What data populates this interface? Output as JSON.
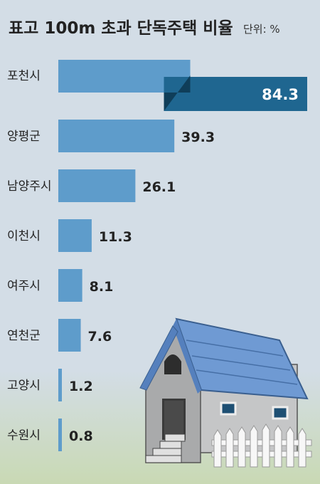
{
  "chart_data": {
    "type": "bar",
    "orientation": "horizontal",
    "title": "표고 100m 초과 단독주택 비율",
    "unit_label": "단위: %",
    "categories": [
      "포천시",
      "양평군",
      "남양주시",
      "이천시",
      "여주시",
      "연천군",
      "고양시",
      "수원시"
    ],
    "values": [
      84.3,
      39.3,
      26.1,
      11.3,
      8.1,
      7.6,
      1.2,
      0.8
    ],
    "value_labels": [
      "84.3",
      "39.3",
      "26.1",
      "11.3",
      "8.1",
      "7.6",
      "1.2",
      "0.8"
    ],
    "xlim": [
      0,
      84.3
    ],
    "grid": false,
    "colors": {
      "bar": "#5e9ccb",
      "highlight_bar": "#1f6690",
      "highlight_fold": "#0f3e59",
      "background": "#d3dde6",
      "ground": "#cfdcc0"
    }
  }
}
